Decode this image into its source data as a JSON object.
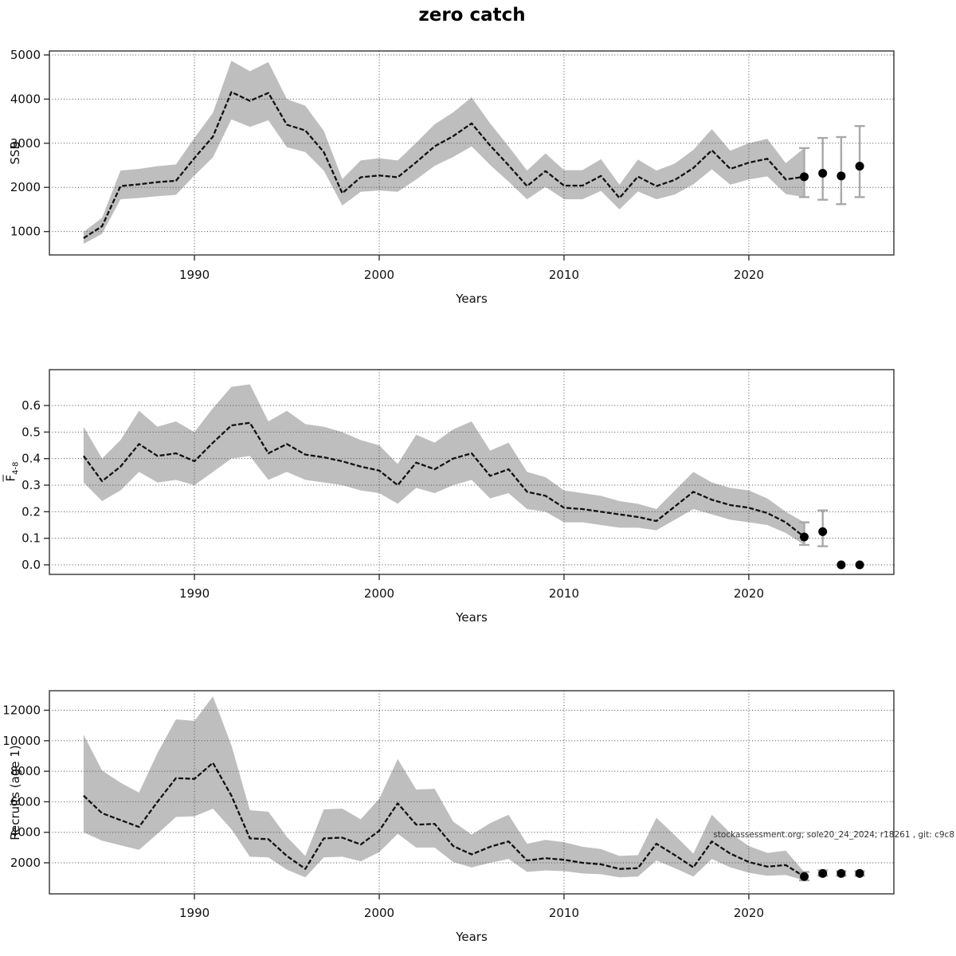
{
  "title": "zero catch",
  "watermark": "stockassessment.org; sole20_24_2024; r18261 , git: c9c8",
  "x_axis_label": "Years",
  "x_ticks": [
    1990,
    2000,
    2010,
    2020
  ],
  "colors": {
    "band": "#bebebe",
    "line": "#111111",
    "grid": "#4a4a4a",
    "axis": "#333333",
    "error_bar": "#a9a9a9",
    "dot": "#000000"
  },
  "chart_data": [
    {
      "type": "line",
      "panel": "ssb",
      "ylabel": "SSB",
      "xlabel": "Years",
      "grid": true,
      "legend": "none",
      "xlim": [
        1982.15,
        2027.85
      ],
      "ylim": [
        470,
        5090
      ],
      "yticks": [
        1000,
        2000,
        3000,
        4000,
        5000
      ],
      "ytick_decimals": 0,
      "x": [
        1984,
        1985,
        1986,
        1987,
        1988,
        1989,
        1990,
        1991,
        1992,
        1993,
        1994,
        1995,
        1996,
        1997,
        1998,
        1999,
        2000,
        2001,
        2002,
        2003,
        2004,
        2005,
        2006,
        2007,
        2008,
        2009,
        2010,
        2011,
        2012,
        2013,
        2014,
        2015,
        2016,
        2017,
        2018,
        2019,
        2020,
        2021,
        2022,
        2023
      ],
      "series": [
        {
          "name": "SSB estimate",
          "values": [
            850,
            1120,
            2030,
            2070,
            2120,
            2150,
            2665,
            3150,
            4160,
            3960,
            4140,
            3420,
            3290,
            2800,
            1870,
            2230,
            2270,
            2230,
            2570,
            2930,
            3160,
            3450,
            2950,
            2500,
            2030,
            2370,
            2040,
            2040,
            2260,
            1760,
            2245,
            2030,
            2170,
            2440,
            2840,
            2420,
            2560,
            2650,
            2180,
            2240
          ]
        }
      ],
      "band": {
        "lo": [
          720,
          950,
          1730,
          1760,
          1800,
          1830,
          2270,
          2680,
          3540,
          3370,
          3520,
          2910,
          2800,
          2380,
          1590,
          1900,
          1930,
          1900,
          2180,
          2490,
          2690,
          2930,
          2510,
          2130,
          1730,
          2010,
          1730,
          1730,
          1920,
          1500,
          1910,
          1730,
          1840,
          2070,
          2410,
          2060,
          2180,
          2250,
          1850,
          1780
        ],
        "hi": [
          990,
          1310,
          2380,
          2420,
          2480,
          2520,
          3120,
          3690,
          4870,
          4630,
          4840,
          4000,
          3850,
          3280,
          2190,
          2610,
          2660,
          2610,
          3010,
          3430,
          3700,
          4040,
          3450,
          2930,
          2380,
          2770,
          2390,
          2390,
          2640,
          2060,
          2630,
          2380,
          2540,
          2850,
          3320,
          2830,
          3000,
          3100,
          2550,
          2890
        ]
      },
      "forecast": {
        "x": [
          2023,
          2024,
          2025,
          2026
        ],
        "values": [
          2240,
          2320,
          2260,
          2480
        ],
        "lo": [
          1780,
          1720,
          1620,
          1780
        ],
        "hi": [
          2890,
          3120,
          3140,
          3390
        ]
      }
    },
    {
      "type": "line",
      "panel": "fbar",
      "ylabel": "F4-8",
      "ylabel_main": "F",
      "ylabel_sub": "4-8",
      "xlabel": "Years",
      "grid": true,
      "legend": "none",
      "xlim": [
        1982.15,
        2027.85
      ],
      "ylim": [
        -0.036,
        0.735
      ],
      "yticks": [
        0,
        0.1,
        0.2,
        0.3,
        0.4,
        0.5,
        0.6
      ],
      "ytick_decimals": 1,
      "x": [
        1984,
        1985,
        1986,
        1987,
        1988,
        1989,
        1990,
        1991,
        1992,
        1993,
        1994,
        1995,
        1996,
        1997,
        1998,
        1999,
        2000,
        2001,
        2002,
        2003,
        2004,
        2005,
        2006,
        2007,
        2008,
        2009,
        2010,
        2011,
        2012,
        2013,
        2014,
        2015,
        2016,
        2017,
        2018,
        2019,
        2020,
        2021,
        2022,
        2023
      ],
      "series": [
        {
          "name": "Fbar 4-8 estimate",
          "values": [
            0.41,
            0.315,
            0.37,
            0.455,
            0.41,
            0.42,
            0.39,
            0.46,
            0.525,
            0.535,
            0.42,
            0.455,
            0.415,
            0.405,
            0.39,
            0.37,
            0.355,
            0.3,
            0.385,
            0.36,
            0.4,
            0.42,
            0.335,
            0.36,
            0.275,
            0.26,
            0.215,
            0.21,
            0.2,
            0.19,
            0.18,
            0.165,
            0.22,
            0.275,
            0.245,
            0.225,
            0.215,
            0.195,
            0.16,
            0.105
          ]
        }
      ],
      "band": {
        "lo": [
          0.31,
          0.24,
          0.28,
          0.35,
          0.31,
          0.32,
          0.3,
          0.35,
          0.4,
          0.41,
          0.32,
          0.35,
          0.32,
          0.31,
          0.3,
          0.28,
          0.27,
          0.23,
          0.29,
          0.27,
          0.3,
          0.32,
          0.25,
          0.27,
          0.21,
          0.2,
          0.16,
          0.16,
          0.15,
          0.14,
          0.14,
          0.13,
          0.17,
          0.21,
          0.19,
          0.17,
          0.16,
          0.15,
          0.12,
          0.075
        ],
        "hi": [
          0.52,
          0.4,
          0.47,
          0.58,
          0.52,
          0.54,
          0.5,
          0.59,
          0.67,
          0.68,
          0.54,
          0.58,
          0.53,
          0.52,
          0.5,
          0.47,
          0.45,
          0.38,
          0.49,
          0.46,
          0.51,
          0.54,
          0.43,
          0.46,
          0.35,
          0.33,
          0.28,
          0.27,
          0.26,
          0.24,
          0.23,
          0.21,
          0.28,
          0.35,
          0.31,
          0.29,
          0.28,
          0.25,
          0.2,
          0.16
        ]
      },
      "forecast": {
        "x": [
          2023,
          2024,
          2025,
          2026
        ],
        "values": [
          0.105,
          0.125,
          0,
          0
        ],
        "lo": [
          0.075,
          0.07,
          0,
          0
        ],
        "hi": [
          0.16,
          0.205,
          0,
          0
        ]
      }
    },
    {
      "type": "line",
      "panel": "recruits",
      "ylabel": "Recruits (age 1)",
      "xlabel": "Years",
      "grid": true,
      "legend": "none",
      "xlim": [
        1982.15,
        2027.85
      ],
      "ylim": [
        -36,
        13280
      ],
      "yticks": [
        2000,
        4000,
        6000,
        8000,
        10000,
        12000
      ],
      "ytick_decimals": 0,
      "x": [
        1984,
        1985,
        1986,
        1987,
        1988,
        1989,
        1990,
        1991,
        1992,
        1993,
        1994,
        1995,
        1996,
        1997,
        1998,
        1999,
        2000,
        2001,
        2002,
        2003,
        2004,
        2005,
        2006,
        2007,
        2008,
        2009,
        2010,
        2011,
        2012,
        2013,
        2014,
        2015,
        2016,
        2017,
        2018,
        2019,
        2020,
        2021,
        2022,
        2023
      ],
      "series": [
        {
          "name": "Recruitment estimate",
          "values": [
            6400,
            5250,
            4800,
            4350,
            6000,
            7550,
            7500,
            8550,
            6400,
            3600,
            3550,
            2450,
            1600,
            3600,
            3650,
            3200,
            4100,
            5900,
            4500,
            4550,
            3100,
            2550,
            3050,
            3400,
            2150,
            2300,
            2200,
            2000,
            1900,
            1600,
            1650,
            3250,
            2500,
            1700,
            3400,
            2600,
            2050,
            1750,
            1850,
            1100
          ]
        }
      ],
      "band": {
        "lo": [
          4000,
          3450,
          3150,
          2850,
          3900,
          5000,
          5050,
          5550,
          4200,
          2400,
          2350,
          1550,
          1050,
          2350,
          2400,
          2100,
          2700,
          3900,
          3000,
          3000,
          2050,
          1700,
          2000,
          2250,
          1400,
          1500,
          1450,
          1300,
          1250,
          1050,
          1100,
          2150,
          1650,
          1100,
          2250,
          1700,
          1350,
          1150,
          1200,
          850
        ],
        "hi": [
          10400,
          8050,
          7250,
          6600,
          9200,
          11400,
          11300,
          12900,
          9700,
          5450,
          5350,
          3700,
          2450,
          5500,
          5550,
          4850,
          6200,
          8800,
          6800,
          6850,
          4700,
          3850,
          4600,
          5150,
          3250,
          3500,
          3350,
          3050,
          2900,
          2450,
          2500,
          4950,
          3800,
          2600,
          5150,
          3950,
          3100,
          2650,
          2800,
          1400
        ]
      },
      "forecast": {
        "x": [
          2023,
          2024,
          2025,
          2026
        ],
        "values": [
          1100,
          1300,
          1300,
          1300
        ],
        "lo": [
          850,
          1150,
          1150,
          1150
        ],
        "hi": [
          1400,
          1500,
          1450,
          1450
        ]
      }
    }
  ]
}
